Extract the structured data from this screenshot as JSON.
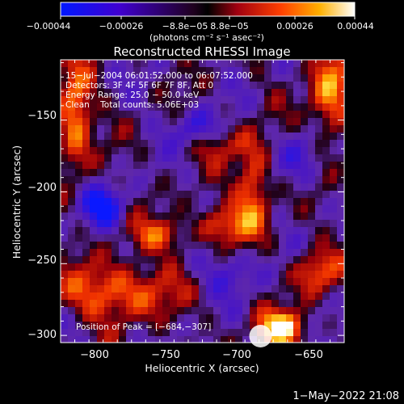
{
  "chart_data": {
    "type": "heatmap",
    "title": "Reconstructed RHESSI Image",
    "xlabel": "Heliocentric X (arcsec)",
    "ylabel": "Heliocentric Y (arcsec)",
    "xlim": [
      -825,
      -625
    ],
    "ylim": [
      -305,
      -108
    ],
    "x_ticks": [
      -800,
      -750,
      -700,
      -650
    ],
    "x_tick_labels": [
      "−800",
      "−750",
      "−700",
      "−650"
    ],
    "y_ticks": [
      -150,
      -200,
      -250,
      -300
    ],
    "y_tick_labels": [
      "−150",
      "−200",
      "−250",
      "−300"
    ],
    "colorbar": {
      "range": [
        -0.00044,
        0.00044
      ],
      "tick_labels": [
        "−0.00044",
        "−0.00026",
        "−8.8e−05",
        "8.8e−05",
        "0.00026",
        "0.00044"
      ],
      "unit_label": "(photons cm⁻² s⁻¹ asec⁻²)"
    },
    "annotations": [
      "15−Jul−2004 06:01:52.000 to 06:07:52.000",
      "Detectors: 3F 4F 5F 6F 7F 8F, Att 0",
      "Energy Range: 25.0 − 50.0 keV",
      "Clean    Total counts: 5.06E+03"
    ],
    "peak_label": "Position of Peak = [−684,−307]",
    "peak": [
      -684,
      -307
    ],
    "colors": {
      "low": "#0a1cff",
      "mid": "#000000",
      "high": "#ffffff"
    }
  },
  "footer": {
    "timestamp": "1−May−2022 21:08"
  }
}
